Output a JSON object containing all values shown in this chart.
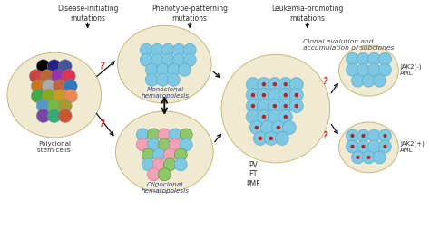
{
  "bg_color": "#ffffff",
  "beige": "#f0ead2",
  "blue_cell": "#7ec8e3",
  "blue_cell_edge": "#5aabcc",
  "pink_cell": "#f4a0b5",
  "pink_cell_edge": "#cc8099",
  "green_cell": "#8ec86a",
  "green_cell_edge": "#5a9940",
  "red_dot": "#bb2222",
  "q_color": "#cc2222",
  "text_color": "#333333",
  "italic_color": "#555555",
  "polyclonal_colors": [
    "#000000",
    "#222288",
    "#445599",
    "#cc4444",
    "#bb6633",
    "#9933aa",
    "#dd3355",
    "#cc7722",
    "#aaaaaa",
    "#bb6644",
    "#3377bb",
    "#44aa44",
    "#88aa22",
    "#cc9922",
    "#ee8855",
    "#5599cc",
    "#77bb44",
    "#aa9933",
    "#7744aa",
    "#33aa77",
    "#cc5533",
    "#99cc44",
    "#000000"
  ],
  "header1": "Disease-initiating\nmutations",
  "header2": "Phenotype-patterning\nmutations",
  "header3": "Leukemia-promoting\nmutations",
  "label_polyclonal": "Polyclonal\nstem cells",
  "label_mono": "Monoclonal\nhematopoiesis",
  "label_oligo": "Oligoclonal\nhematopoiesis",
  "label_clonal": "Clonal evolution and\naccumulation of subclones",
  "label_pv": "PV\nET\nPMF",
  "label_jak2neg": "JAK2(-)\nAML",
  "label_jak2pos": "JAK2(+)\nAML"
}
